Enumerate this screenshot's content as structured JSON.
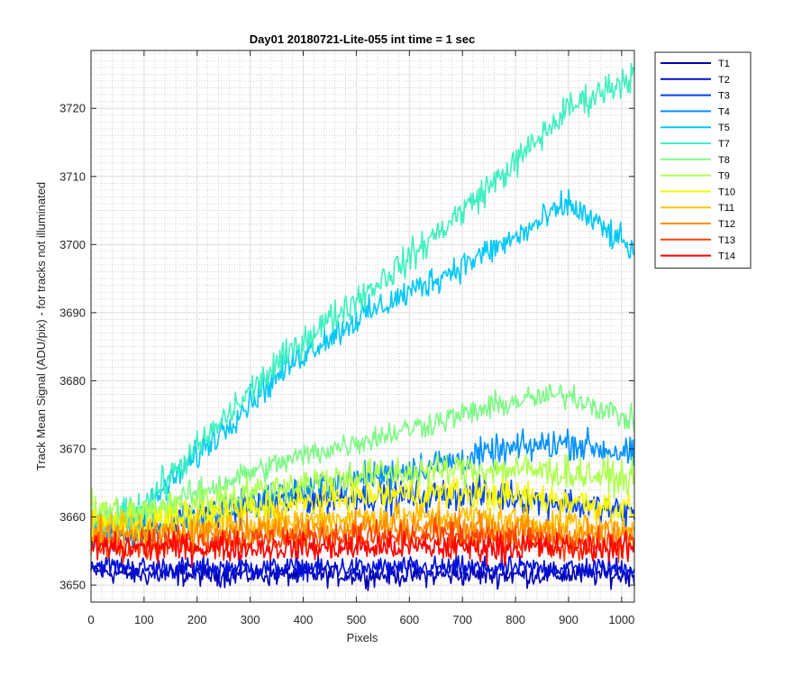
{
  "chart_data": {
    "type": "line",
    "title": "Day01 20180721-Lite-055 int time = 1 sec",
    "xlabel": "Pixels",
    "ylabel": "Track Mean Signal (ADU/pix) - for tracks not illuminated",
    "xlim": [
      0,
      1024
    ],
    "ylim": [
      3647.5,
      3728.5
    ],
    "xticks": [
      0,
      100,
      200,
      300,
      400,
      500,
      600,
      700,
      800,
      900,
      1000
    ],
    "yticks": [
      3650,
      3660,
      3670,
      3680,
      3690,
      3700,
      3710,
      3720
    ],
    "grid": "major and minor",
    "legend_position": "outside-right-top",
    "series": [
      {
        "name": "T1",
        "color": "#0000b4",
        "x": [
          0,
          100,
          200,
          300,
          400,
          500,
          600,
          700,
          800,
          900,
          1024
        ],
        "values": [
          3652,
          3651.5,
          3651.5,
          3651.5,
          3651.5,
          3651.5,
          3651.5,
          3651.5,
          3651.5,
          3651.5,
          3651.5
        ]
      },
      {
        "name": "T2",
        "color": "#0010d8",
        "x": [
          0,
          100,
          200,
          300,
          400,
          500,
          600,
          700,
          800,
          900,
          1024
        ],
        "values": [
          3653,
          3652.5,
          3652.5,
          3652.5,
          3652.5,
          3652.5,
          3652.5,
          3652.5,
          3652.5,
          3652.5,
          3652.5
        ]
      },
      {
        "name": "T3",
        "color": "#0040f0",
        "x": [
          0,
          100,
          200,
          300,
          400,
          500,
          600,
          700,
          800,
          900,
          1024
        ],
        "values": [
          3658,
          3658,
          3660,
          3661.5,
          3662.5,
          3663,
          3663,
          3663.5,
          3663,
          3662,
          3660.5
        ]
      },
      {
        "name": "T4",
        "color": "#0090ff",
        "x": [
          0,
          100,
          200,
          300,
          400,
          500,
          600,
          700,
          800,
          900,
          1024
        ],
        "values": [
          3657,
          3658,
          3660,
          3662,
          3664,
          3665.5,
          3667,
          3668.5,
          3670,
          3671,
          3669
        ]
      },
      {
        "name": "T5",
        "color": "#00c8f8",
        "x": [
          0,
          100,
          200,
          300,
          400,
          500,
          600,
          700,
          800,
          900,
          1024
        ],
        "values": [
          3658,
          3661,
          3669,
          3677,
          3684,
          3689,
          3693,
          3697,
          3701,
          3706,
          3699
        ]
      },
      {
        "name": "T7",
        "color": "#40f0c0",
        "x": [
          0,
          100,
          200,
          300,
          400,
          500,
          600,
          700,
          800,
          900,
          1024
        ],
        "values": [
          3658,
          3662,
          3670,
          3678.5,
          3686,
          3692,
          3698,
          3705,
          3712,
          3720,
          3725
        ]
      },
      {
        "name": "T8",
        "color": "#80f888",
        "x": [
          0,
          100,
          200,
          300,
          400,
          500,
          600,
          700,
          800,
          900,
          1024
        ],
        "values": [
          3659,
          3661,
          3663.5,
          3666.5,
          3669,
          3671,
          3673,
          3675,
          3677,
          3678,
          3674
        ]
      },
      {
        "name": "T9",
        "color": "#b0ff50",
        "x": [
          0,
          100,
          200,
          300,
          400,
          500,
          600,
          700,
          800,
          900,
          1024
        ],
        "values": [
          3661,
          3660.5,
          3662,
          3663.5,
          3665,
          3666,
          3666.5,
          3667,
          3667,
          3666.5,
          3665.5
        ]
      },
      {
        "name": "T10",
        "color": "#f8f800",
        "x": [
          0,
          100,
          200,
          300,
          400,
          500,
          600,
          700,
          800,
          900,
          1024
        ],
        "values": [
          3659,
          3659,
          3660,
          3661,
          3662,
          3663,
          3663.5,
          3663.5,
          3663,
          3662.5,
          3661
        ]
      },
      {
        "name": "T11",
        "color": "#ffc000",
        "x": [
          0,
          100,
          200,
          300,
          400,
          500,
          600,
          700,
          800,
          900,
          1024
        ],
        "values": [
          3658,
          3658,
          3658.5,
          3659,
          3659.5,
          3660,
          3660,
          3660,
          3659.5,
          3659,
          3658.5
        ]
      },
      {
        "name": "T12",
        "color": "#ff8c00",
        "x": [
          0,
          100,
          200,
          300,
          400,
          500,
          600,
          700,
          800,
          900,
          1024
        ],
        "values": [
          3657,
          3657,
          3657.5,
          3658,
          3658,
          3658.5,
          3658.5,
          3658.5,
          3658,
          3657.5,
          3657
        ]
      },
      {
        "name": "T13",
        "color": "#ff4000",
        "x": [
          0,
          100,
          200,
          300,
          400,
          500,
          600,
          700,
          800,
          900,
          1024
        ],
        "values": [
          3656,
          3656,
          3656.5,
          3656.5,
          3657,
          3657,
          3657,
          3657,
          3656.5,
          3656,
          3656
        ]
      },
      {
        "name": "T14",
        "color": "#ff0000",
        "x": [
          0,
          100,
          200,
          300,
          400,
          500,
          600,
          700,
          800,
          900,
          1024
        ],
        "values": [
          3655.5,
          3655.5,
          3655.5,
          3655.5,
          3655.5,
          3655.5,
          3655.5,
          3655.5,
          3655.5,
          3655.5,
          3655.5
        ]
      }
    ]
  }
}
